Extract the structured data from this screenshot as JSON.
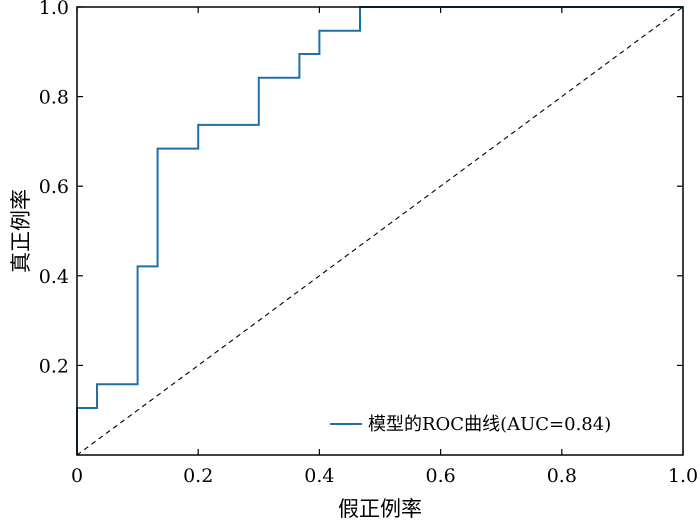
{
  "chart_data": {
    "type": "line",
    "xlabel": "假正例率",
    "ylabel": "真正例率",
    "xlim": [
      0,
      1
    ],
    "ylim": [
      0,
      1
    ],
    "x_ticks": [
      0,
      0.2,
      0.4,
      0.6,
      0.8,
      1.0
    ],
    "x_tick_labels": [
      "0",
      "0.2",
      "0.4",
      "0.6",
      "0.8",
      "1.0"
    ],
    "y_ticks": [
      0.2,
      0.4,
      0.6,
      0.8,
      1.0
    ],
    "y_tick_labels": [
      "0.2",
      "0.4",
      "0.6",
      "0.8",
      "1.0"
    ],
    "grid": false,
    "legend_position": "bottom-right",
    "series": [
      {
        "name": "模型的ROC曲线(AUC=0.84)",
        "color": "#1f6fa8",
        "style": "step",
        "x": [
          0,
          0,
          0.033,
          0.033,
          0.1,
          0.1,
          0.133,
          0.133,
          0.2,
          0.2,
          0.3,
          0.3,
          0.367,
          0.367,
          0.4,
          0.4,
          0.467,
          0.467,
          1.0
        ],
        "y": [
          0,
          0.105,
          0.105,
          0.158,
          0.158,
          0.421,
          0.421,
          0.684,
          0.684,
          0.737,
          0.737,
          0.842,
          0.842,
          0.895,
          0.895,
          0.947,
          0.947,
          1.0,
          1.0
        ]
      }
    ],
    "reference_line": {
      "x": [
        0,
        1
      ],
      "y": [
        0,
        1
      ],
      "color": "#000000",
      "style": "dashed"
    }
  }
}
